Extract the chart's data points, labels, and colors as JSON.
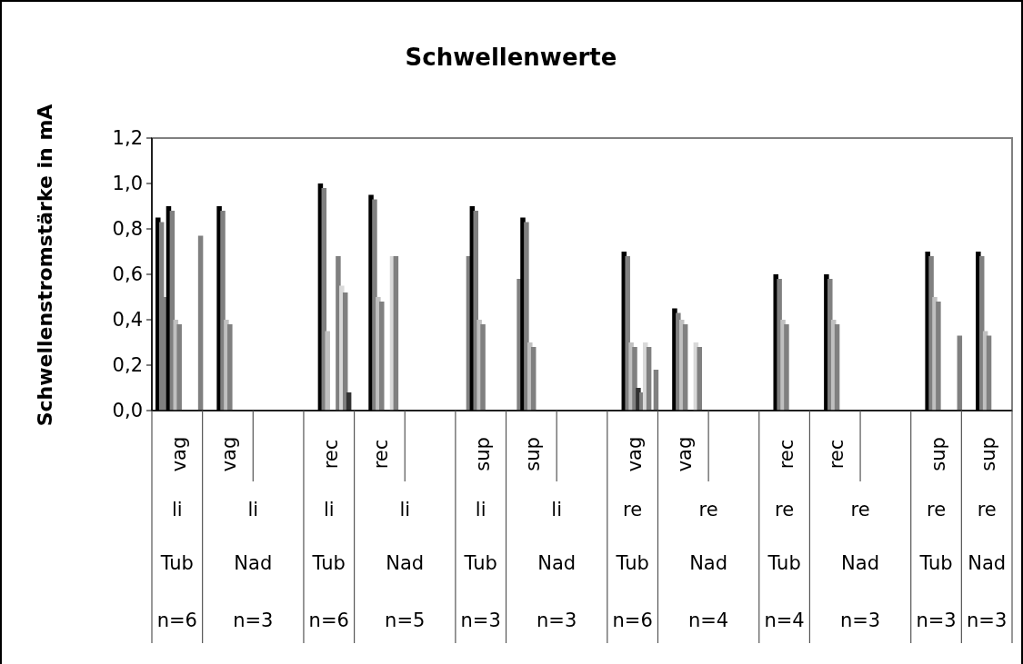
{
  "chart_data": {
    "type": "bar",
    "title": "Schwellenwerte",
    "ylabel": "Schwellenstromstärke in mA",
    "categories": [
      "vag\nli\nTub\nn=6",
      "vag\nli\nNad\nn=3",
      null,
      "rec\nli\nTub\nn=6",
      "rec\nli\nNad\nn=5",
      null,
      "sup\nli\nTub\nn=3",
      "sup\nli\nNad\nn=3",
      null,
      "vag\nre\nTub\nn=6",
      "vag\nre\nNad\nn=4",
      null,
      "rec\nre\nTub\nn=4",
      "rec\nre\nNad\nn=3",
      null,
      "sup\nre\nTub\nn=3",
      "sup\nre\nNad\nn=3"
    ],
    "series": [
      {
        "color": "#000000",
        "values": [
          0.85,
          null,
          null,
          null,
          null,
          null,
          null,
          null,
          null,
          null,
          null,
          null,
          null,
          null,
          null,
          null,
          null
        ]
      },
      {
        "color": "#808080",
        "values": [
          0.83,
          null,
          null,
          null,
          null,
          null,
          null,
          null,
          null,
          null,
          null,
          null,
          null,
          null,
          null,
          null,
          null
        ]
      },
      {
        "color": "#808080",
        "values": [
          0.5,
          null,
          null,
          null,
          null,
          null,
          0.68,
          0.58,
          null,
          null,
          null,
          null,
          null,
          null,
          null,
          null,
          null
        ]
      },
      {
        "color": "#000000",
        "values": [
          0.9,
          0.9,
          null,
          1.0,
          0.95,
          null,
          0.9,
          0.85,
          null,
          0.7,
          0.45,
          null,
          0.6,
          0.6,
          null,
          0.7,
          0.7
        ]
      },
      {
        "color": "#808080",
        "values": [
          0.88,
          0.88,
          null,
          0.98,
          0.93,
          null,
          0.88,
          0.83,
          null,
          0.68,
          0.43,
          null,
          0.58,
          0.58,
          null,
          0.68,
          0.68
        ]
      },
      {
        "color": "#c0c0c0",
        "values": [
          0.4,
          0.4,
          null,
          0.35,
          0.5,
          null,
          0.4,
          0.3,
          null,
          0.3,
          0.4,
          null,
          0.4,
          0.4,
          null,
          0.5,
          0.35
        ]
      },
      {
        "color": "#808080",
        "values": [
          0.38,
          0.38,
          null,
          null,
          0.48,
          null,
          0.38,
          0.28,
          null,
          0.28,
          0.38,
          null,
          0.38,
          0.38,
          null,
          0.48,
          0.33
        ]
      },
      {
        "color": "#333333",
        "values": [
          null,
          null,
          null,
          null,
          null,
          null,
          null,
          null,
          null,
          0.1,
          null,
          null,
          null,
          null,
          null,
          null,
          null
        ]
      },
      {
        "color": "#808080",
        "values": [
          null,
          null,
          null,
          0.68,
          null,
          null,
          null,
          null,
          null,
          0.08,
          null,
          null,
          null,
          null,
          null,
          null,
          null
        ]
      },
      {
        "color": "#d9d9d9",
        "values": [
          null,
          null,
          null,
          0.55,
          0.68,
          null,
          null,
          null,
          null,
          0.3,
          0.3,
          null,
          null,
          null,
          null,
          null,
          null
        ]
      },
      {
        "color": "#808080",
        "values": [
          null,
          null,
          null,
          0.52,
          0.68,
          null,
          null,
          null,
          null,
          0.28,
          0.28,
          null,
          null,
          null,
          null,
          null,
          null
        ]
      },
      {
        "color": "#333333",
        "values": [
          null,
          null,
          null,
          0.08,
          null,
          null,
          null,
          null,
          null,
          null,
          null,
          null,
          null,
          null,
          null,
          null,
          null
        ]
      },
      {
        "color": "#808080",
        "values": [
          0.77,
          null,
          null,
          null,
          null,
          null,
          null,
          null,
          null,
          0.18,
          null,
          null,
          null,
          null,
          null,
          0.33,
          null
        ]
      }
    ],
    "ylim": [
      0,
      1.2
    ],
    "yticks": [
      {
        "value": 0,
        "label": "0,0"
      },
      {
        "value": 0.2,
        "label": "0,2"
      },
      {
        "value": 0.4,
        "label": "0,4"
      },
      {
        "value": 0.6,
        "label": "0,6"
      },
      {
        "value": 0.8,
        "label": "0,8"
      },
      {
        "value": 1.0,
        "label": "1,0"
      },
      {
        "value": 1.2,
        "label": "1,2"
      }
    ],
    "grid": false
  }
}
